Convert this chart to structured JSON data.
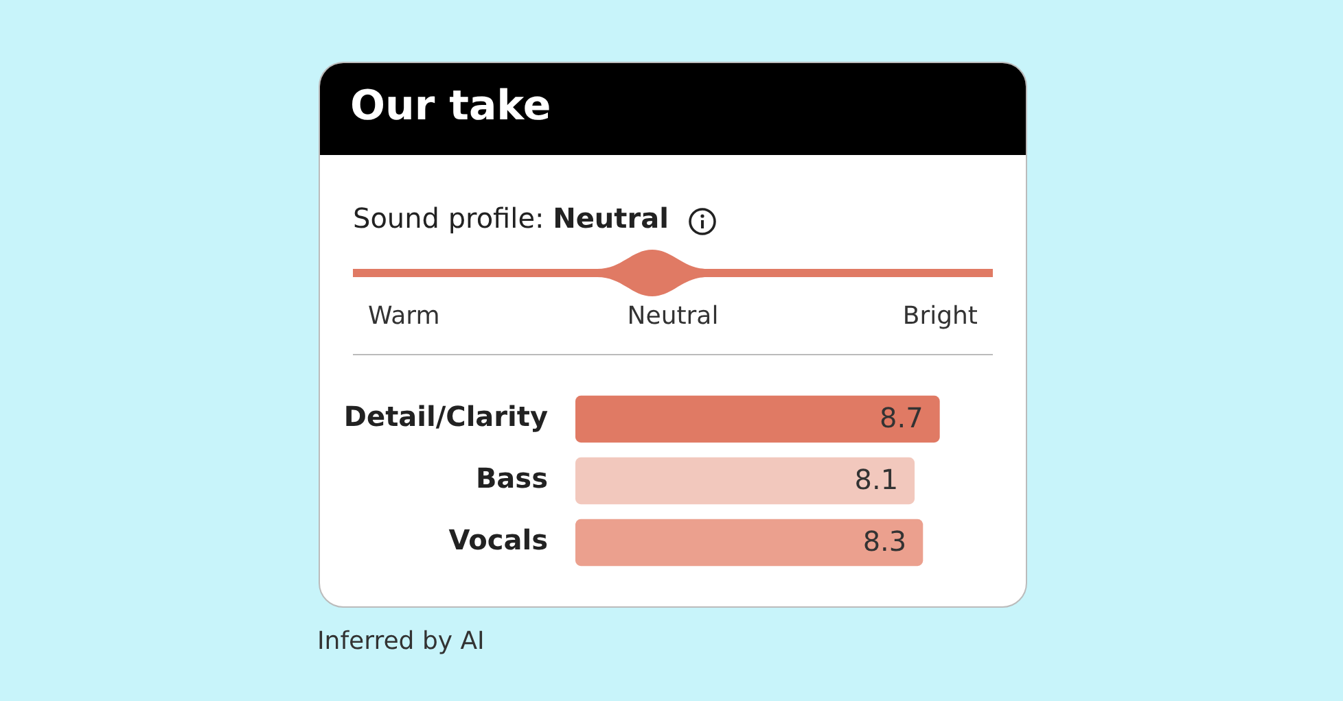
{
  "chart_data": {
    "type": "bar",
    "orientation": "horizontal",
    "title": "Our take",
    "subtitle": "Sound profile: Neutral",
    "categories": [
      "Detail/Clarity",
      "Bass",
      "Vocals"
    ],
    "values": [
      8.7,
      8.1,
      8.3
    ],
    "colors": [
      "#e07a64",
      "#f2c8bd",
      "#eba08e"
    ],
    "tick_labels": "y",
    "data_labels": true,
    "grid": false,
    "legend": false,
    "annotations": [
      "Warm",
      "Neutral",
      "Bright",
      "Inferred by AI"
    ]
  }
}
